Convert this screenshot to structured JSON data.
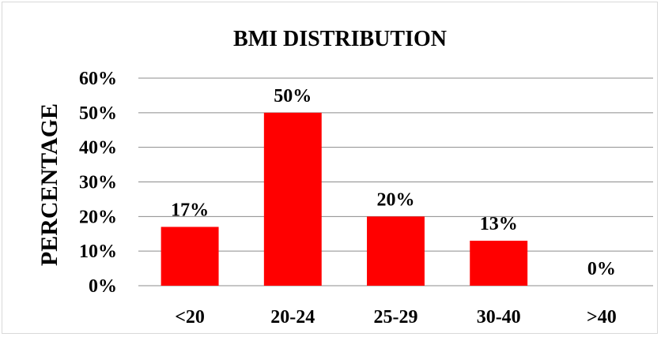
{
  "chart_data": {
    "type": "bar",
    "title": "BMI DISTRIBUTION",
    "xlabel": "",
    "ylabel": "PERCENTAGE",
    "categories": [
      "<20",
      "20-24",
      "25-29",
      "30-40",
      ">40"
    ],
    "values": [
      17,
      50,
      20,
      13,
      0
    ],
    "data_labels": [
      "17%",
      "50%",
      "20%",
      "13%",
      "0%"
    ],
    "ylim": [
      0,
      60
    ],
    "y_ticks": [
      0,
      10,
      20,
      30,
      40,
      50,
      60
    ],
    "y_tick_labels": [
      "0%",
      "10%",
      "20%",
      "30%",
      "40%",
      "50%",
      "60%"
    ],
    "grid": true,
    "legend": "none",
    "bar_color": "#ff0000"
  }
}
